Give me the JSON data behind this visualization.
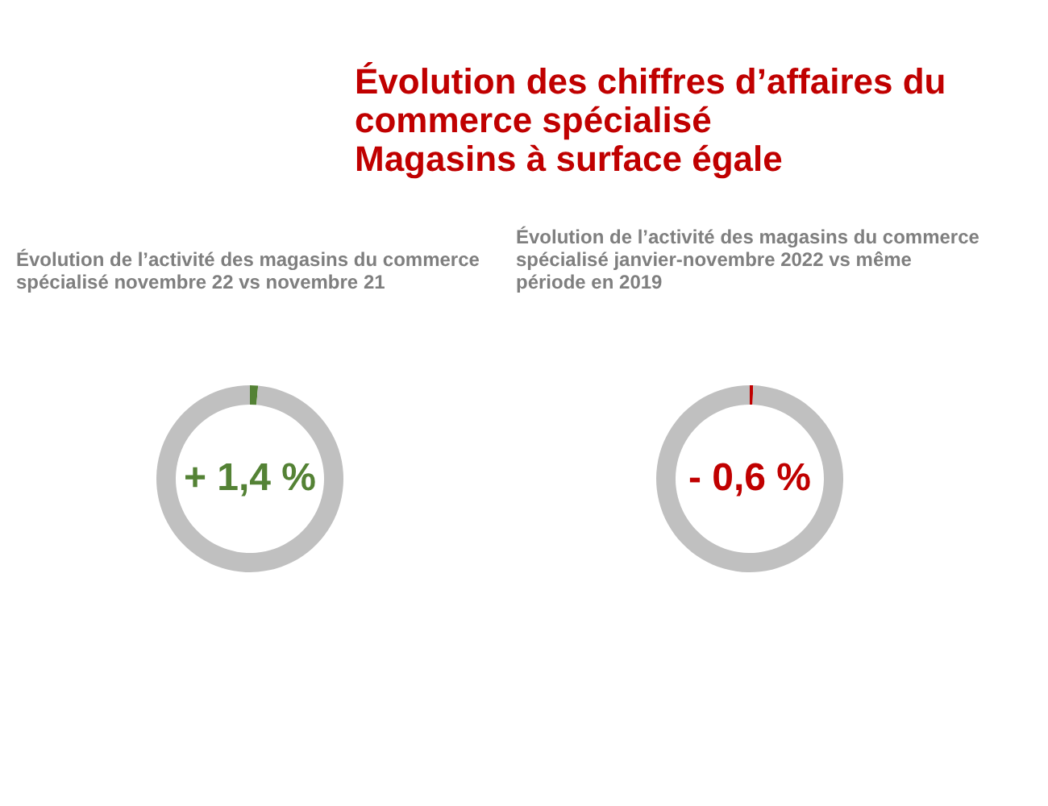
{
  "chart_data": [
    {
      "type": "other",
      "title": "Évolution des chiffres d’affaires du\ncommerce spécialisé\nMagasins à surface égale"
    },
    {
      "type": "donut",
      "title": "Évolution de l’activité des magasins du commerce\nspécialisé novembre 22 vs novembre 21",
      "categories": [
        null,
        null
      ],
      "values": [
        1.4,
        98.6
      ],
      "colors": [
        "#548235",
        "#c0c0c0"
      ],
      "annotations": [
        "+ 1,4 %"
      ],
      "legend": false
    },
    {
      "type": "donut",
      "title": "Évolution de l’activité des magasins du commerce\nspécialisé janvier-novembre 2022 vs même\npériode en 2019",
      "categories": [
        null,
        null
      ],
      "values": [
        0.6,
        99.4
      ],
      "colors": [
        "#c00000",
        "#c0c0c0"
      ],
      "annotations": [
        "- 0,6 %"
      ],
      "legend": false
    }
  ]
}
